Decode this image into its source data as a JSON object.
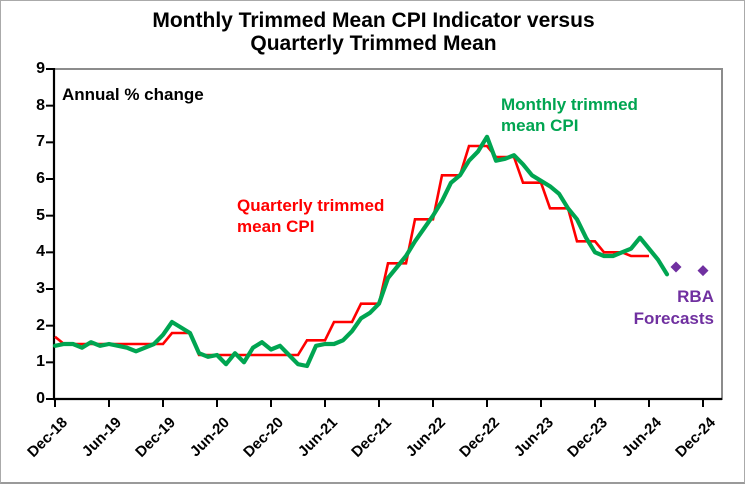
{
  "figure": {
    "title_line1": "Monthly Trimmed Mean CPI Indicator versus",
    "title_line2": "Quarterly Trimmed Mean",
    "axis_note": "Annual % change",
    "labels": {
      "monthly_line1": "Monthly trimmed",
      "monthly_line2": "mean CPI",
      "quarterly_line1": "Quarterly trimmed",
      "quarterly_line2": "mean CPI",
      "forecast_line1": "RBA",
      "forecast_line2": "Forecasts"
    },
    "colors": {
      "monthly_green": "#00A551",
      "quarterly_red": "#FF0000",
      "forecast_purple": "#7030A0",
      "axis_black": "#000000",
      "frame_grey": "#8C8C8C"
    }
  },
  "chart_data": {
    "type": "line",
    "title": "Monthly Trimmed Mean CPI Indicator versus Quarterly Trimmed Mean",
    "ylabel": "Annual % change",
    "ylim": [
      0,
      9
    ],
    "yticks": [
      0,
      1,
      2,
      3,
      4,
      5,
      6,
      7,
      8,
      9
    ],
    "xticks": [
      "Dec-18",
      "Jun-19",
      "Dec-19",
      "Jun-20",
      "Dec-20",
      "Jun-21",
      "Dec-21",
      "Jun-22",
      "Dec-22",
      "Jun-23",
      "Dec-23",
      "Jun-24",
      "Dec-24"
    ],
    "grid": false,
    "legend": "in-plot text labels",
    "series": [
      {
        "name": "Monthly trimmed mean CPI",
        "color": "#00A551",
        "frequency": "monthly",
        "start": "Dec-18",
        "values": [
          1.45,
          1.5,
          1.5,
          1.4,
          1.55,
          1.45,
          1.5,
          1.45,
          1.4,
          1.3,
          1.4,
          1.5,
          1.75,
          2.1,
          1.95,
          1.8,
          1.25,
          1.15,
          1.2,
          0.95,
          1.25,
          1.0,
          1.4,
          1.55,
          1.35,
          1.45,
          1.2,
          0.95,
          0.9,
          1.45,
          1.5,
          1.5,
          1.6,
          1.85,
          2.2,
          2.35,
          2.6,
          3.3,
          3.6,
          3.9,
          4.3,
          4.65,
          5.0,
          5.4,
          5.9,
          6.1,
          6.5,
          6.75,
          7.15,
          6.5,
          6.55,
          6.65,
          6.4,
          6.1,
          5.95,
          5.8,
          5.6,
          5.2,
          4.9,
          4.4,
          4.0,
          3.9,
          3.9,
          4.0,
          4.1,
          4.4,
          4.1,
          3.8,
          3.4
        ]
      },
      {
        "name": "Quarterly trimmed mean CPI",
        "color": "#FF0000",
        "frequency": "quarterly",
        "quarters": [
          "Dec-18",
          "Mar-19",
          "Jun-19",
          "Sep-19",
          "Dec-19",
          "Mar-20",
          "Jun-20",
          "Sep-20",
          "Dec-20",
          "Mar-21",
          "Jun-21",
          "Sep-21",
          "Dec-21",
          "Mar-22",
          "Jun-22",
          "Sep-22",
          "Dec-22",
          "Mar-23",
          "Jun-23",
          "Sep-23",
          "Dec-23",
          "Mar-24",
          "Jun-24"
        ],
        "values": [
          1.7,
          1.5,
          1.5,
          1.5,
          1.5,
          1.8,
          1.2,
          1.2,
          1.2,
          1.2,
          1.6,
          2.1,
          2.6,
          3.7,
          4.9,
          6.1,
          6.9,
          6.6,
          5.9,
          5.2,
          4.3,
          4.0,
          3.9
        ]
      },
      {
        "name": "RBA Forecasts",
        "color": "#7030A0",
        "style": "diamond-points",
        "points": [
          {
            "label": "Sep-24",
            "value": 3.6
          },
          {
            "label": "Dec-24",
            "value": 3.5
          }
        ]
      }
    ]
  }
}
